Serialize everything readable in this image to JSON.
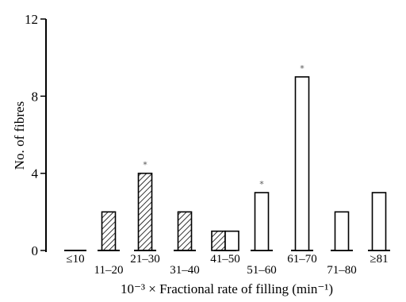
{
  "chart_data": {
    "type": "bar",
    "title": "",
    "xlabel": "10⁻³ × Fractional rate of filling (min⁻¹)",
    "ylabel": "No. of fibres",
    "ylim": [
      0,
      12
    ],
    "yticks": [
      "0",
      "4",
      "8",
      "12"
    ],
    "categories": [
      "≤10",
      "11–20",
      "21–30",
      "31–40",
      "41–50",
      "51–60",
      "61–70",
      "71–80",
      "≥81"
    ],
    "series": [
      {
        "fill": "hatched",
        "values": [
          0,
          2,
          4,
          2,
          1,
          0,
          0,
          0,
          0
        ]
      },
      {
        "fill": "open",
        "values": [
          0,
          0,
          0,
          0,
          1,
          3,
          9,
          2,
          3
        ]
      }
    ],
    "significance_marker": "*",
    "significant_categories": [
      "21–30",
      "51–60",
      "61–70"
    ]
  }
}
